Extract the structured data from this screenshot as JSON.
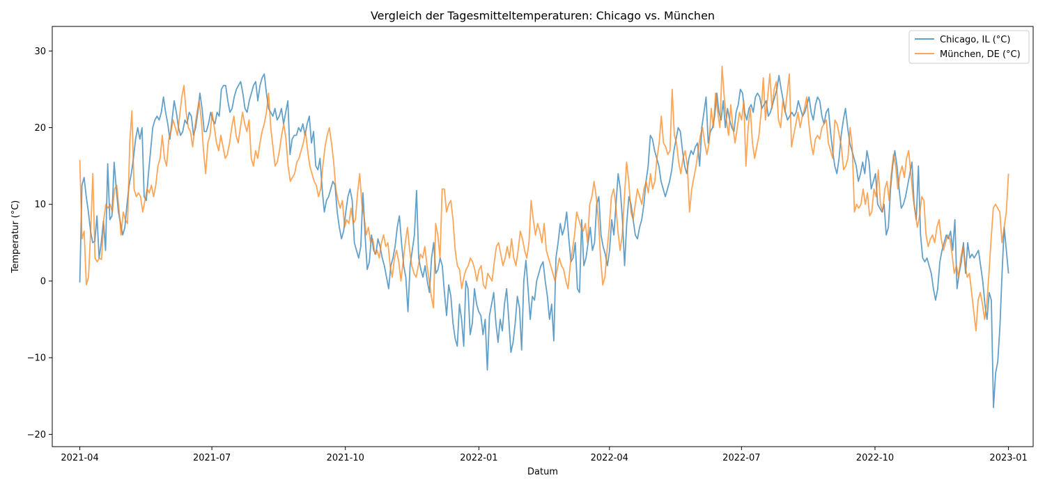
{
  "chart_data": {
    "type": "line",
    "title": "Vergleich der Tagesmitteltemperaturen: Chicago vs. München",
    "xlabel": "Datum",
    "ylabel": "Temperatur (°C)",
    "xlim": [
      "2021-03-13",
      "2023-01-18"
    ],
    "ylim": [
      -21.6,
      33.2
    ],
    "x_ticks": [
      "2021-04",
      "2021-07",
      "2021-10",
      "2022-01",
      "2022-04",
      "2022-07",
      "2022-10",
      "2023-01"
    ],
    "y_ticks": [
      -20,
      -10,
      0,
      10,
      20,
      30
    ],
    "grid": false,
    "legend_position": "top-right",
    "x_start": "2021-04-01",
    "x_end": "2023-01-01",
    "series": [
      {
        "name": "Chicago, IL (°C)",
        "color": "#1f77b4",
        "values": [
          -0.2,
          12.5,
          13.5,
          11.0,
          9.0,
          6.5,
          5.0,
          5.2,
          8.5,
          3.0,
          5.0,
          7.8,
          4.0,
          15.3,
          8.0,
          8.5,
          15.5,
          12.0,
          9.0,
          7.5,
          6.0,
          7.0,
          10.0,
          12.5,
          14.0,
          16.0,
          18.5,
          20.0,
          18.5,
          20.0,
          11.0,
          10.5,
          14.0,
          17.0,
          20.0,
          21.0,
          21.5,
          21.0,
          22.0,
          24.0,
          22.0,
          20.5,
          18.5,
          21.0,
          23.5,
          22.0,
          20.0,
          19.0,
          19.5,
          21.0,
          20.5,
          22.0,
          21.5,
          19.0,
          20.0,
          22.0,
          24.5,
          22.5,
          19.5,
          19.5,
          20.5,
          22.0,
          21.0,
          20.5,
          22.0,
          21.5,
          25.0,
          25.5,
          25.5,
          23.5,
          22.0,
          22.5,
          24.0,
          25.0,
          25.5,
          26.0,
          24.5,
          22.5,
          22.0,
          23.5,
          24.5,
          25.5,
          26.0,
          23.5,
          25.5,
          26.5,
          27.0,
          24.5,
          22.5,
          22.0,
          21.5,
          22.5,
          21.0,
          21.5,
          22.5,
          20.5,
          22.0,
          23.5,
          16.5,
          18.5,
          19.0,
          19.0,
          20.0,
          19.5,
          20.5,
          19.0,
          20.5,
          21.5,
          18.0,
          19.5,
          15.0,
          14.5,
          16.0,
          12.0,
          9.0,
          10.5,
          11.0,
          12.0,
          13.0,
          12.5,
          9.0,
          7.0,
          5.5,
          6.5,
          9.0,
          11.0,
          12.0,
          10.5,
          5.0,
          4.0,
          3.0,
          4.5,
          11.5,
          6.0,
          1.5,
          2.5,
          6.0,
          4.0,
          3.5,
          5.5,
          4.5,
          3.0,
          2.0,
          0.5,
          -1.0,
          2.0,
          3.0,
          4.5,
          7.0,
          8.5,
          5.0,
          2.0,
          0.5,
          -4.0,
          2.0,
          4.0,
          6.0,
          11.8,
          3.0,
          1.5,
          0.5,
          2.0,
          0.0,
          -1.5,
          3.0,
          5.0,
          1.0,
          1.5,
          3.0,
          2.0,
          -1.5,
          -4.5,
          -0.5,
          -2.0,
          -5.5,
          -7.5,
          -8.5,
          -3.0,
          -5.0,
          -8.5,
          0.0,
          -1.0,
          -7.0,
          -5.5,
          -1.0,
          -3.0,
          -4.0,
          -4.5,
          -7.0,
          -5.0,
          -11.6,
          -4.5,
          -3.0,
          -1.5,
          -5.5,
          -8.0,
          -5.0,
          -6.5,
          -3.0,
          -1.0,
          -5.0,
          -9.3,
          -8.0,
          -5.5,
          -2.0,
          -3.5,
          -9.0,
          0.0,
          2.7,
          -1.0,
          -5.0,
          -2.0,
          -2.5,
          0.0,
          1.0,
          2.0,
          2.5,
          0.0,
          -2.0,
          -5.0,
          -3.0,
          -7.8,
          3.0,
          5.0,
          7.5,
          6.0,
          7.0,
          9.0,
          5.5,
          2.5,
          3.0,
          5.0,
          -1.0,
          -1.5,
          8.0,
          2.0,
          3.0,
          5.0,
          7.0,
          4.0,
          5.0,
          10.0,
          11.0,
          6.0,
          4.5,
          3.5,
          2.0,
          4.0,
          8.0,
          6.0,
          10.0,
          14.0,
          12.0,
          8.0,
          2.0,
          7.5,
          11.0,
          10.0,
          8.0,
          6.0,
          5.5,
          7.0,
          8.0,
          10.0,
          13.0,
          15.0,
          19.0,
          18.5,
          17.0,
          16.0,
          15.0,
          13.0,
          12.0,
          11.0,
          12.0,
          13.0,
          14.5,
          17.0,
          18.5,
          20.0,
          19.5,
          17.0,
          15.0,
          14.0,
          16.0,
          17.0,
          16.5,
          17.5,
          18.0,
          15.0,
          20.0,
          22.0,
          24.0,
          18.0,
          19.5,
          20.0,
          21.5,
          24.5,
          22.0,
          21.0,
          23.5,
          20.0,
          22.5,
          21.0,
          20.0,
          19.5,
          22.0,
          23.0,
          25.0,
          24.5,
          22.0,
          21.0,
          22.5,
          23.0,
          22.0,
          24.0,
          24.5,
          24.0,
          22.5,
          23.0,
          23.5,
          21.5,
          22.0,
          23.0,
          24.0,
          25.0,
          26.8,
          25.0,
          23.5,
          22.0,
          21.0,
          21.5,
          22.0,
          21.5,
          22.0,
          23.5,
          22.5,
          21.5,
          22.0,
          23.0,
          24.0,
          22.0,
          21.0,
          23.0,
          24.0,
          23.5,
          21.5,
          20.5,
          22.0,
          22.5,
          19.5,
          17.0,
          15.0,
          14.0,
          16.0,
          19.0,
          21.0,
          22.5,
          20.0,
          18.0,
          17.0,
          16.0,
          15.0,
          13.0,
          14.0,
          15.5,
          14.0,
          17.0,
          15.5,
          12.0,
          13.0,
          14.0,
          10.0,
          9.5,
          9.0,
          10.0,
          6.0,
          7.0,
          12.0,
          15.0,
          17.0,
          15.0,
          12.0,
          9.5,
          10.0,
          11.0,
          12.5,
          14.0,
          15.5,
          10.0,
          8.0,
          15.0,
          6.0,
          3.0,
          2.5,
          3.0,
          2.0,
          1.0,
          -1.0,
          -2.5,
          -1.0,
          2.5,
          4.0,
          5.0,
          6.0,
          5.5,
          6.5,
          4.0,
          8.0,
          -1.0,
          1.0,
          2.5,
          5.0,
          1.0,
          5.0,
          3.0,
          3.5,
          3.0,
          3.5,
          4.0,
          2.0,
          0.0,
          -3.0,
          -5.0,
          -1.5,
          -2.5,
          -16.5,
          -12.0,
          -10.5,
          -6.0,
          1.0,
          7.0,
          4.0,
          1.0
        ]
      },
      {
        "name": "München, DE (°C)",
        "color": "#ff7f0e",
        "values": [
          15.8,
          5.5,
          6.5,
          -0.5,
          0.5,
          6.5,
          14.0,
          3.0,
          2.5,
          3.0,
          2.8,
          8.0,
          10.0,
          9.5,
          10.0,
          9.0,
          12.0,
          12.5,
          9.5,
          6.0,
          9.0,
          8.0,
          7.5,
          18.0,
          22.2,
          12.0,
          11.0,
          11.5,
          11.0,
          9.0,
          10.5,
          12.0,
          11.5,
          12.5,
          11.0,
          12.5,
          15.0,
          16.0,
          19.0,
          16.0,
          15.0,
          18.5,
          19.5,
          21.0,
          20.0,
          19.0,
          21.5,
          24.0,
          25.5,
          22.0,
          20.0,
          19.5,
          17.5,
          20.0,
          22.0,
          23.5,
          21.0,
          17.0,
          14.0,
          18.0,
          19.0,
          22.0,
          20.0,
          18.0,
          17.0,
          19.0,
          17.5,
          16.0,
          16.5,
          18.0,
          20.0,
          21.5,
          19.0,
          18.0,
          20.0,
          22.0,
          20.5,
          19.5,
          21.0,
          16.0,
          15.0,
          17.0,
          16.0,
          18.0,
          19.5,
          20.5,
          22.0,
          24.5,
          20.0,
          17.5,
          15.0,
          15.5,
          17.0,
          19.0,
          20.5,
          18.5,
          15.0,
          13.0,
          13.5,
          14.0,
          15.5,
          16.0,
          17.0,
          18.0,
          19.5,
          17.0,
          15.0,
          14.0,
          13.0,
          12.5,
          11.0,
          12.0,
          15.0,
          17.5,
          19.0,
          20.0,
          18.0,
          15.5,
          12.0,
          10.5,
          9.5,
          10.5,
          7.0,
          8.0,
          7.5,
          9.5,
          7.5,
          8.0,
          11.5,
          14.0,
          10.0,
          8.5,
          6.0,
          7.0,
          5.0,
          5.5,
          3.5,
          4.0,
          3.0,
          5.0,
          6.0,
          4.5,
          5.0,
          2.0,
          0.5,
          3.0,
          4.0,
          2.5,
          0.0,
          2.5,
          5.0,
          7.0,
          4.0,
          2.0,
          1.0,
          0.5,
          2.0,
          3.5,
          3.0,
          4.5,
          2.0,
          0.0,
          -2.0,
          -3.5,
          7.5,
          6.0,
          3.0,
          12.0,
          12.0,
          9.0,
          10.0,
          10.5,
          8.0,
          4.0,
          2.0,
          1.5,
          -1.0,
          0.5,
          1.5,
          2.0,
          3.0,
          2.5,
          1.5,
          0.0,
          1.5,
          2.0,
          -0.5,
          -1.0,
          1.0,
          0.5,
          0.0,
          2.5,
          4.5,
          5.0,
          3.5,
          2.0,
          3.0,
          4.5,
          3.0,
          5.5,
          3.0,
          2.0,
          4.0,
          6.5,
          5.5,
          4.0,
          3.0,
          5.0,
          10.5,
          8.0,
          6.0,
          7.5,
          6.5,
          5.0,
          7.5,
          4.0,
          3.0,
          2.0,
          1.0,
          0.0,
          1.5,
          3.0,
          2.0,
          1.5,
          0.0,
          -1.0,
          2.0,
          4.0,
          6.0,
          9.0,
          8.0,
          7.0,
          6.5,
          7.5,
          5.0,
          10.0,
          11.0,
          13.0,
          11.0,
          8.0,
          3.0,
          -0.5,
          0.5,
          4.0,
          7.0,
          11.0,
          12.0,
          10.0,
          6.5,
          4.0,
          6.0,
          11.0,
          15.5,
          13.0,
          9.0,
          8.0,
          10.0,
          12.0,
          11.0,
          10.0,
          12.0,
          13.0,
          11.5,
          14.0,
          12.0,
          13.0,
          16.0,
          18.0,
          21.5,
          18.0,
          17.5,
          16.5,
          17.0,
          25.0,
          19.0,
          18.0,
          15.5,
          14.0,
          16.0,
          17.0,
          15.0,
          9.0,
          12.0,
          13.5,
          15.0,
          17.0,
          19.0,
          20.0,
          18.0,
          16.5,
          18.0,
          22.5,
          20.0,
          24.5,
          22.0,
          20.0,
          28.0,
          24.0,
          21.0,
          19.0,
          23.0,
          20.0,
          18.0,
          20.0,
          22.0,
          21.0,
          23.5,
          15.0,
          20.0,
          22.5,
          18.0,
          16.0,
          17.5,
          19.0,
          22.0,
          26.5,
          21.0,
          24.0,
          27.0,
          22.5,
          25.0,
          26.0,
          21.0,
          20.0,
          23.5,
          22.0,
          24.5,
          27.0,
          17.5,
          19.0,
          20.5,
          22.0,
          20.0,
          21.5,
          22.5,
          24.0,
          20.5,
          18.0,
          16.5,
          18.5,
          19.0,
          18.5,
          20.0,
          20.5,
          21.0,
          18.0,
          17.0,
          16.0,
          21.0,
          20.5,
          19.0,
          17.5,
          14.5,
          15.0,
          16.0,
          20.0,
          17.5,
          9.0,
          10.0,
          9.5,
          10.0,
          12.0,
          10.0,
          11.5,
          8.5,
          9.0,
          12.0,
          11.0,
          14.5,
          10.0,
          9.0,
          12.0,
          13.0,
          10.5,
          14.0,
          16.5,
          15.0,
          12.0,
          14.0,
          15.0,
          13.5,
          16.0,
          17.0,
          14.0,
          11.0,
          9.0,
          7.0,
          8.5,
          11.0,
          10.5,
          6.0,
          4.5,
          5.5,
          6.0,
          5.0,
          7.0,
          8.0,
          5.5,
          4.0,
          5.0,
          6.0,
          5.5,
          3.5,
          1.0,
          2.0,
          0.5,
          3.0,
          4.5,
          2.0,
          0.5,
          1.0,
          -1.5,
          -4.0,
          -6.5,
          -2.5,
          -1.5,
          -3.0,
          -5.0,
          -3.0,
          1.0,
          5.5,
          9.5,
          10.0,
          9.5,
          9.0,
          5.0,
          7.0,
          9.0,
          14.0
        ]
      }
    ]
  }
}
